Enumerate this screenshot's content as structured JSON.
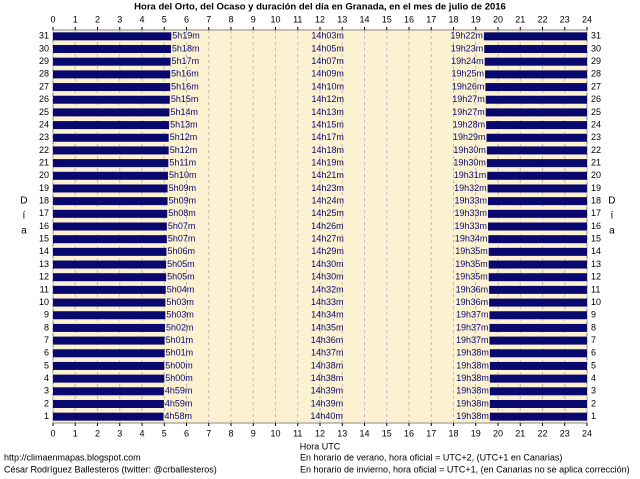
{
  "chart_data": {
    "type": "range-bar",
    "title": "Hora del Orto, del Ocaso y duración del día en Granada, en el mes de julio de 2016",
    "xlabel": "Hora UTC",
    "ylabel": "Día",
    "xlim": [
      0,
      24
    ],
    "xticks": [
      0,
      1,
      2,
      3,
      4,
      5,
      6,
      7,
      8,
      9,
      10,
      11,
      12,
      13,
      14,
      15,
      16,
      17,
      18,
      19,
      20,
      21,
      22,
      23,
      24
    ],
    "grid": true,
    "background": "#fcf2d2",
    "categories": [
      1,
      2,
      3,
      4,
      5,
      6,
      7,
      8,
      9,
      10,
      11,
      12,
      13,
      14,
      15,
      16,
      17,
      18,
      19,
      20,
      21,
      22,
      23,
      24,
      25,
      26,
      27,
      28,
      29,
      30,
      31
    ],
    "sunrise": {
      "color": "#08086e",
      "values": [
        4.9667,
        4.9833,
        4.9833,
        5,
        5,
        5.0167,
        5.0167,
        5.0333,
        5.05,
        5.05,
        5.0667,
        5.0833,
        5.0833,
        5.1,
        5.1167,
        5.1167,
        5.1333,
        5.15,
        5.15,
        5.1667,
        5.1833,
        5.2,
        5.2,
        5.2167,
        5.2333,
        5.25,
        5.2667,
        5.2667,
        5.2833,
        5.3,
        5.3167
      ],
      "value_labels": [
        "4h58m",
        "4h59m",
        "4h59m",
        "5h00m",
        "5h00m",
        "5h01m",
        "5h01m",
        "5h02m",
        "5h03m",
        "5h03m",
        "5h04m",
        "5h05m",
        "5h05m",
        "5h06m",
        "5h07m",
        "5h07m",
        "5h08m",
        "5h09m",
        "5h09m",
        "5h10m",
        "5h11m",
        "5h12m",
        "5h12m",
        "5h13m",
        "5h14m",
        "5h15m",
        "5h16m",
        "5h16m",
        "5h17m",
        "5h18m",
        "5h19m"
      ]
    },
    "sunset": {
      "color": "#08086e",
      "values": [
        19.6333,
        19.6333,
        19.6333,
        19.6333,
        19.6333,
        19.6333,
        19.6167,
        19.6167,
        19.6167,
        19.6,
        19.6,
        19.5833,
        19.5833,
        19.5833,
        19.5667,
        19.55,
        19.55,
        19.55,
        19.5333,
        19.5167,
        19.5,
        19.5,
        19.4833,
        19.4667,
        19.45,
        19.45,
        19.4333,
        19.4167,
        19.4,
        19.3833,
        19.3667
      ],
      "value_labels": [
        "19h38m",
        "19h38m",
        "19h38m",
        "19h38m",
        "19h38m",
        "19h38m",
        "19h37m",
        "19h37m",
        "19h37m",
        "19h36m",
        "19h36m",
        "19h35m",
        "19h35m",
        "19h35m",
        "19h34m",
        "19h33m",
        "19h33m",
        "19h33m",
        "19h32m",
        "19h31m",
        "19h30m",
        "19h30m",
        "19h29m",
        "19h28m",
        "19h27m",
        "19h27m",
        "19h26m",
        "19h25m",
        "19h24m",
        "19h23m",
        "19h22m"
      ]
    },
    "day_length": {
      "values": [
        14.6667,
        14.65,
        14.65,
        14.6333,
        14.6333,
        14.6167,
        14.6,
        14.5833,
        14.5667,
        14.55,
        14.5333,
        14.5,
        14.5,
        14.4833,
        14.45,
        14.4333,
        14.4167,
        14.4,
        14.3833,
        14.35,
        14.3167,
        14.3,
        14.2833,
        14.25,
        14.2167,
        14.2,
        14.1667,
        14.15,
        14.1167,
        14.0833,
        14.05
      ],
      "value_labels": [
        "14h40m",
        "14h39m",
        "14h39m",
        "14h38m",
        "14h38m",
        "14h37m",
        "14h36m",
        "14h35m",
        "14h34m",
        "14h33m",
        "14h32m",
        "14h30m",
        "14h30m",
        "14h29m",
        "14h27m",
        "14h26m",
        "14h25m",
        "14h24m",
        "14h23m",
        "14h21m",
        "14h19m",
        "14h18m",
        "14h17m",
        "14h15m",
        "14h13m",
        "14h12m",
        "14h10m",
        "14h09m",
        "14h07m",
        "14h05m",
        "14h03m"
      ]
    }
  },
  "footer": {
    "left": [
      "http://climaenmapas.blogspot.com",
      "César Rodríguez Ballesteros (twitter: @crballesteros)"
    ],
    "right": [
      "En horario de verano, hora oficial = UTC+2, (UTC+1 en Canarias)",
      "En horario de invierno, hora oficial = UTC+1, (en Canarias no se aplica corrección)"
    ]
  }
}
